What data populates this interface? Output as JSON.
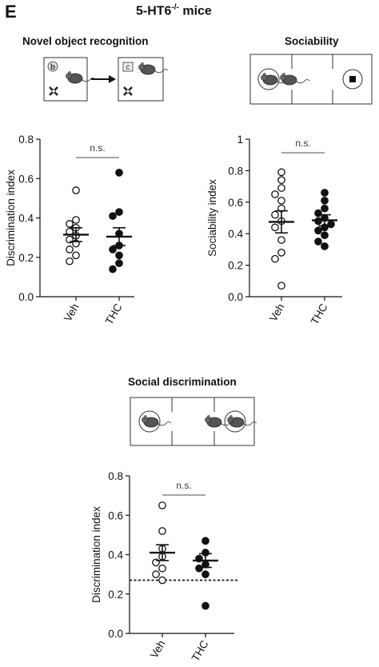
{
  "figure": {
    "panel_letter": "E",
    "title_main": "5-HT6",
    "title_sup": "-/-",
    "title_rest": " mice"
  },
  "schematics": {
    "nor_title": "Novel object recognition",
    "nor_object_left": "b",
    "nor_object_right": "c",
    "sociability_title": "Sociability",
    "social_disc_title": "Social discrimination"
  },
  "chart_data": [
    {
      "type": "scatter",
      "id": "nor",
      "ylabel": "Discrimination index",
      "ylim": [
        0,
        0.8
      ],
      "yticks": [
        "0.0",
        "0.2",
        "0.4",
        "0.6",
        "0.8"
      ],
      "categories": [
        "Veh",
        "THC"
      ],
      "significance": "n.s.",
      "groups": [
        {
          "category": "Veh",
          "filled": false,
          "mean": 0.315,
          "sem": 0.035,
          "points": [
            0.54,
            0.39,
            0.37,
            0.35,
            0.33,
            0.31,
            0.29,
            0.27,
            0.24,
            0.21,
            0.18
          ]
        },
        {
          "category": "THC",
          "filled": true,
          "mean": 0.305,
          "sem": 0.045,
          "points": [
            0.63,
            0.43,
            0.41,
            0.32,
            0.26,
            0.24,
            0.21,
            0.17,
            0.14
          ]
        }
      ]
    },
    {
      "type": "scatter",
      "id": "sociability",
      "ylabel": "Sociability index",
      "ylim": [
        0,
        1.0
      ],
      "yticks": [
        "0.0",
        "0.2",
        "0.4",
        "0.6",
        "0.8",
        "1"
      ],
      "categories": [
        "Veh",
        "THC"
      ],
      "significance": "n.s.",
      "groups": [
        {
          "category": "Veh",
          "filled": false,
          "mean": 0.475,
          "sem": 0.07,
          "points": [
            0.79,
            0.74,
            0.69,
            0.65,
            0.61,
            0.56,
            0.52,
            0.48,
            0.44,
            0.36,
            0.28,
            0.24,
            0.07
          ]
        },
        {
          "category": "THC",
          "filled": true,
          "mean": 0.485,
          "sem": 0.035,
          "points": [
            0.66,
            0.61,
            0.56,
            0.53,
            0.5,
            0.48,
            0.46,
            0.44,
            0.42,
            0.39,
            0.35,
            0.32
          ]
        }
      ]
    },
    {
      "type": "scatter",
      "id": "social-discrimination",
      "ylabel": "Discrimination index",
      "ylim": [
        0,
        0.8
      ],
      "yticks": [
        "0.0",
        "0.2",
        "0.4",
        "0.6",
        "0.8"
      ],
      "categories": [
        "Veh",
        "THC"
      ],
      "significance": "n.s.",
      "reference_line": 0.27,
      "groups": [
        {
          "category": "Veh",
          "filled": false,
          "mean": 0.41,
          "sem": 0.04,
          "points": [
            0.65,
            0.52,
            0.43,
            0.39,
            0.36,
            0.33,
            0.3,
            0.27
          ]
        },
        {
          "category": "THC",
          "filled": true,
          "mean": 0.37,
          "sem": 0.035,
          "points": [
            0.47,
            0.41,
            0.38,
            0.35,
            0.33,
            0.3,
            0.14
          ]
        }
      ]
    }
  ]
}
